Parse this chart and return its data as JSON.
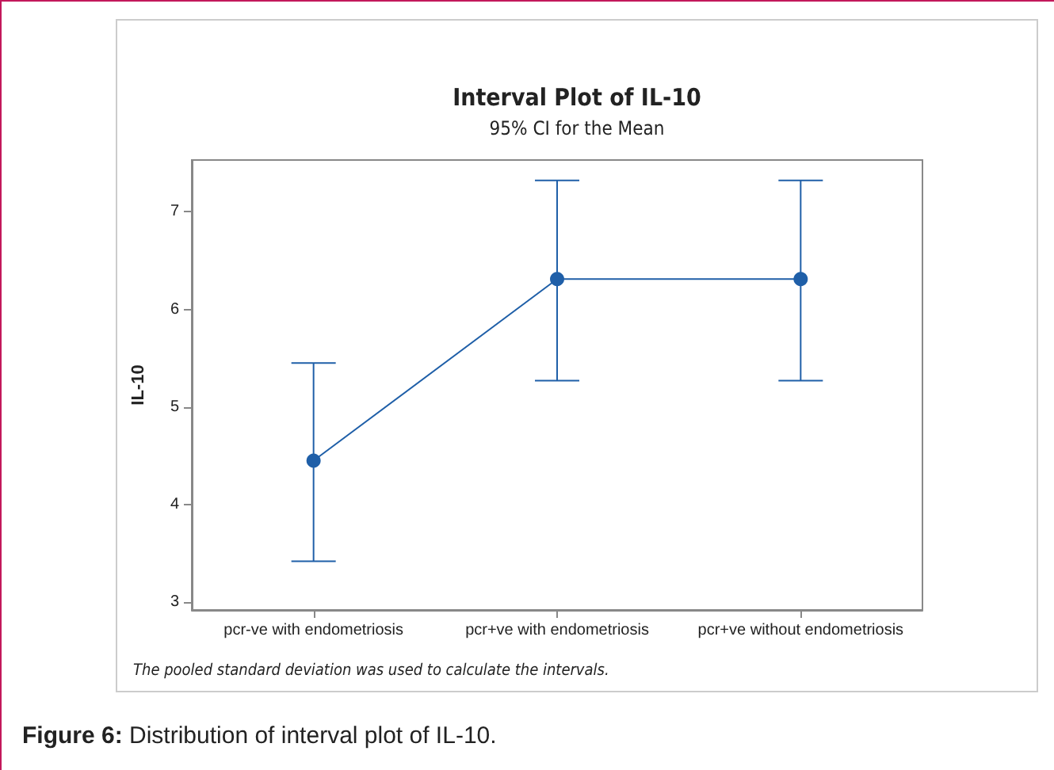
{
  "chart_data": {
    "type": "line",
    "title": "Interval Plot of IL-10",
    "subtitle": "95% CI for the Mean",
    "ylabel": "IL-10",
    "categories": [
      "pcr-ve with endometriosis",
      "pcr+ve with endometriosis",
      "pcr+ve without endometriosis"
    ],
    "values": [
      4.45,
      6.31,
      6.31
    ],
    "color": "#1f5fa8",
    "errors": [
      [
        3.42,
        5.45
      ],
      [
        5.27,
        7.32
      ],
      [
        5.27,
        7.32
      ]
    ],
    "ylim": [
      2.92,
      7.53
    ],
    "yticks": [
      3,
      4,
      5,
      6,
      7
    ],
    "grid": false,
    "marker": "circle",
    "line_style": "solid",
    "annotations": [
      "The pooled standard deviation was used to calculate the intervals.",
      "Figure 6: Distribution of interval plot of IL-10."
    ]
  }
}
